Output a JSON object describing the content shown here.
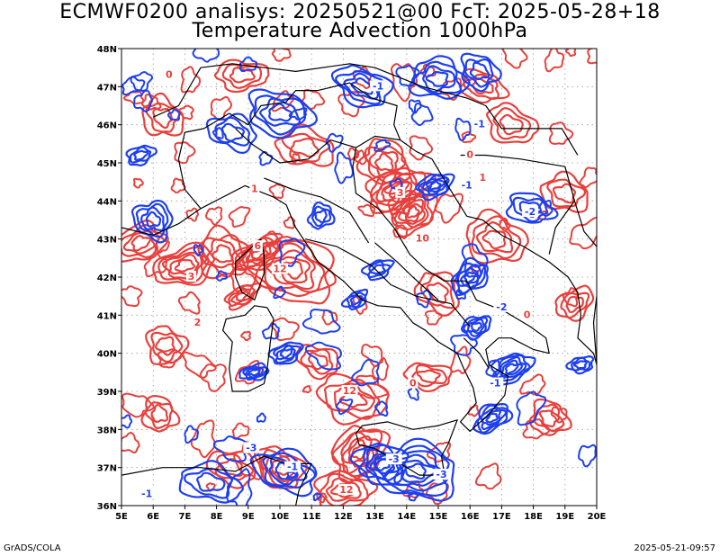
{
  "title_line1": "ECMWF0200 analisys: 20250521@00 FcT: 2025-05-28+18",
  "title_line2": "Temperature Advection 1000hPa",
  "footer_left": "GrADS/COLA",
  "footer_right": "2025-05-21-09:57",
  "map": {
    "lon_range": [
      5,
      20
    ],
    "lat_range": [
      36,
      48
    ],
    "lon_ticks": [
      "5E",
      "6E",
      "7E",
      "8E",
      "9E",
      "10E",
      "11E",
      "12E",
      "13E",
      "14E",
      "15E",
      "16E",
      "17E",
      "18E",
      "19E",
      "20E"
    ],
    "lat_ticks": [
      "36N",
      "37N",
      "38N",
      "39N",
      "40N",
      "41N",
      "42N",
      "43N",
      "44N",
      "45N",
      "46N",
      "47N",
      "48N"
    ],
    "grid_lines": true,
    "colors": {
      "warm_advection": "#e8403c",
      "cold_advection": "#1e3ff0",
      "coastline": "#000000",
      "grid": "#9a9a9a"
    },
    "contour_labels": [
      {
        "text": "1",
        "lon": 9.2,
        "lat": 44.3,
        "kind": "warm"
      },
      {
        "text": "3",
        "lon": 7.2,
        "lat": 42.0,
        "kind": "warm"
      },
      {
        "text": "2",
        "lon": 7.4,
        "lat": 40.8,
        "kind": "warm"
      },
      {
        "text": "6",
        "lon": 9.3,
        "lat": 42.8,
        "kind": "warm"
      },
      {
        "text": "12",
        "lon": 10.0,
        "lat": 42.2,
        "kind": "warm"
      },
      {
        "text": "12",
        "lon": 12.2,
        "lat": 39.0,
        "kind": "warm"
      },
      {
        "text": "12",
        "lon": 12.1,
        "lat": 36.4,
        "kind": "warm"
      },
      {
        "text": "10",
        "lon": 14.5,
        "lat": 43.0,
        "kind": "warm"
      },
      {
        "text": "3",
        "lon": 13.8,
        "lat": 44.2,
        "kind": "warm"
      },
      {
        "text": "1",
        "lon": 16.4,
        "lat": 44.6,
        "kind": "warm"
      },
      {
        "text": "0",
        "lon": 6.5,
        "lat": 47.3,
        "kind": "warm"
      },
      {
        "text": "0",
        "lon": 16.0,
        "lat": 45.2,
        "kind": "warm"
      },
      {
        "text": "0",
        "lon": 17.8,
        "lat": 41.0,
        "kind": "warm"
      },
      {
        "text": "0",
        "lon": 14.2,
        "lat": 39.2,
        "kind": "warm"
      },
      {
        "text": "-1",
        "lon": 13.1,
        "lat": 47.0,
        "kind": "cold"
      },
      {
        "text": "-1",
        "lon": 16.3,
        "lat": 46.0,
        "kind": "cold"
      },
      {
        "text": "-1",
        "lon": 15.9,
        "lat": 44.4,
        "kind": "cold"
      },
      {
        "text": "-2",
        "lon": 17.9,
        "lat": 43.7,
        "kind": "cold"
      },
      {
        "text": "-3",
        "lon": 9.1,
        "lat": 37.5,
        "kind": "cold"
      },
      {
        "text": "-3",
        "lon": 13.6,
        "lat": 37.2,
        "kind": "cold"
      },
      {
        "text": "-1",
        "lon": 10.4,
        "lat": 37.0,
        "kind": "cold"
      },
      {
        "text": "-1",
        "lon": 5.8,
        "lat": 36.3,
        "kind": "cold"
      },
      {
        "text": "-3",
        "lon": 15.1,
        "lat": 36.8,
        "kind": "cold"
      },
      {
        "text": "-2",
        "lon": 17.0,
        "lat": 41.2,
        "kind": "cold"
      },
      {
        "text": "-1",
        "lon": 16.8,
        "lat": 39.2,
        "kind": "cold"
      }
    ]
  }
}
